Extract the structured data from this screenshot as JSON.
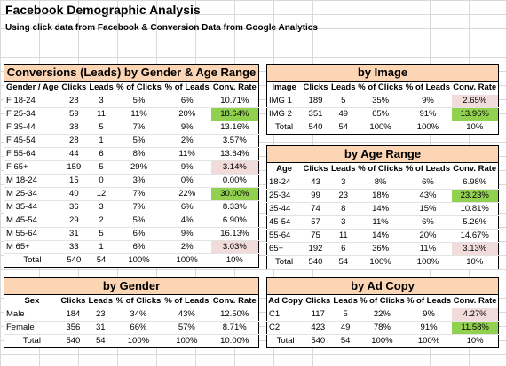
{
  "title": "Facebook Demographic Analysis",
  "subtitle": "Using click data from Facebook & Conversion Data from Google Analytics",
  "colors": {
    "header_fill": "#fcd5b4",
    "best": "#92d050",
    "worst": "#f2dcdb"
  },
  "gender_age": {
    "caption": "Conversions (Leads) by Gender & Age Range",
    "headers": [
      "Gender / Age",
      "Clicks",
      "Leads",
      "% of Clicks",
      "% of Leads",
      "Conv. Rate"
    ],
    "rows": [
      [
        "F 18-24",
        "28",
        "3",
        "5%",
        "6%",
        "10.71%"
      ],
      [
        "F 25-34",
        "59",
        "11",
        "11%",
        "20%",
        "18.64%"
      ],
      [
        "F 35-44",
        "38",
        "5",
        "7%",
        "9%",
        "13.16%"
      ],
      [
        "F 45-54",
        "28",
        "1",
        "5%",
        "2%",
        "3.57%"
      ],
      [
        "F 55-64",
        "44",
        "6",
        "8%",
        "11%",
        "13.64%"
      ],
      [
        "F 65+",
        "159",
        "5",
        "29%",
        "9%",
        "3.14%"
      ],
      [
        "M 18-24",
        "15",
        "0",
        "3%",
        "0%",
        "0.00%"
      ],
      [
        "M 25-34",
        "40",
        "12",
        "7%",
        "22%",
        "30.00%"
      ],
      [
        "M 35-44",
        "36",
        "3",
        "7%",
        "6%",
        "8.33%"
      ],
      [
        "M 45-54",
        "29",
        "2",
        "5%",
        "4%",
        "6.90%"
      ],
      [
        "M 55-64",
        "31",
        "5",
        "6%",
        "9%",
        "16.13%"
      ],
      [
        "M 65+",
        "33",
        "1",
        "6%",
        "2%",
        "3.03%"
      ]
    ],
    "total": [
      "Total",
      "540",
      "54",
      "100%",
      "100%",
      "10%"
    ]
  },
  "by_image": {
    "caption": "by Image",
    "headers": [
      "Image",
      "Clicks",
      "Leads",
      "% of Clicks",
      "% of Leads",
      "Conv. Rate"
    ],
    "rows": [
      [
        "IMG 1",
        "189",
        "5",
        "35%",
        "9%",
        "2.65%"
      ],
      [
        "IMG 2",
        "351",
        "49",
        "65%",
        "91%",
        "13.96%"
      ]
    ],
    "total": [
      "Total",
      "540",
      "54",
      "100%",
      "100%",
      "10%"
    ]
  },
  "by_age": {
    "caption": "by Age Range",
    "headers": [
      "Age",
      "Clicks",
      "Leads",
      "% of Clicks",
      "% of Leads",
      "Conv. Rate"
    ],
    "rows": [
      [
        "18-24",
        "43",
        "3",
        "8%",
        "6%",
        "6.98%"
      ],
      [
        "25-34",
        "99",
        "23",
        "18%",
        "43%",
        "23.23%"
      ],
      [
        "35-44",
        "74",
        "8",
        "14%",
        "15%",
        "10.81%"
      ],
      [
        "45-54",
        "57",
        "3",
        "11%",
        "6%",
        "5.26%"
      ],
      [
        "55-64",
        "75",
        "11",
        "14%",
        "20%",
        "14.67%"
      ],
      [
        "65+",
        "192",
        "6",
        "36%",
        "11%",
        "3.13%"
      ]
    ],
    "total": [
      "Total",
      "540",
      "54",
      "100%",
      "100%",
      "10%"
    ]
  },
  "by_gender": {
    "caption": "by Gender",
    "headers": [
      "Sex",
      "Clicks",
      "Leads",
      "% of Clicks",
      "% of Leads",
      "Conv. Rate"
    ],
    "rows": [
      [
        "Male",
        "184",
        "23",
        "34%",
        "43%",
        "12.50%"
      ],
      [
        "Female",
        "356",
        "31",
        "66%",
        "57%",
        "8.71%"
      ]
    ],
    "total": [
      "Total",
      "540",
      "54",
      "100%",
      "100%",
      "10.00%"
    ]
  },
  "by_ad_copy": {
    "caption": "by Ad Copy",
    "headers": [
      "Ad Copy",
      "Clicks",
      "Leads",
      "% of Clicks",
      "% of Leads",
      "Conv. Rate"
    ],
    "rows": [
      [
        "C1",
        "117",
        "5",
        "22%",
        "9%",
        "4.27%"
      ],
      [
        "C2",
        "423",
        "49",
        "78%",
        "91%",
        "11.58%"
      ]
    ],
    "total": [
      "Total",
      "540",
      "54",
      "100%",
      "100%",
      "10%"
    ]
  }
}
